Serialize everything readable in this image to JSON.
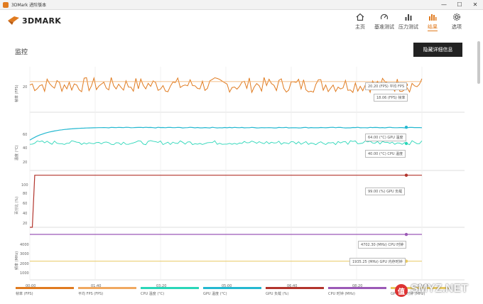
{
  "window": {
    "title": "3DMark 进阶版本",
    "min": "—",
    "max": "☐",
    "close": "✕"
  },
  "app": {
    "logo_text": "3DMARK"
  },
  "nav": [
    {
      "label": "主页",
      "icon": "home-icon"
    },
    {
      "label": "基准测试",
      "icon": "gauge-icon"
    },
    {
      "label": "压力测试",
      "icon": "bar-chart-icon"
    },
    {
      "label": "结果",
      "icon": "results-icon",
      "active": true
    },
    {
      "label": "选项",
      "icon": "gear-icon"
    }
  ],
  "section": {
    "title": "监控",
    "detail_button": "隐藏详细信息"
  },
  "panels": [
    {
      "ylabel": "帧率 (FPS)",
      "ticks": [
        "20"
      ]
    },
    {
      "ylabel": "温度 (°C)",
      "ticks": [
        "60",
        "40",
        "20"
      ]
    },
    {
      "ylabel": "百分比 (%)",
      "ticks": [
        "100",
        "80",
        "60",
        "40",
        "20"
      ]
    },
    {
      "ylabel": "频率 (MHz)",
      "ticks": [
        "4000",
        "3000",
        "2000",
        "1000"
      ]
    }
  ],
  "callouts": {
    "fps": "20.20 (FPS) 平均 FPS",
    "fps2": "18.06 (FPS) 帧率",
    "gpu_temp": "64.00 (°C) GPU 温度",
    "cpu_temp": "40.00 (°C) CPU 温度",
    "gpu_load": "99.00 (%) GPU 负载",
    "cpu_clock": "4702.30 (MHz) CPU 时钟",
    "gpu_mem": "1935.25 (MHz) GPU 内存时钟"
  },
  "x_ticks": [
    "00:00",
    "01:40",
    "03:20",
    "05:00",
    "06:40",
    "08:20",
    "10:00"
  ],
  "legend": [
    {
      "label": "帧率 (FPS)",
      "color": "#e07b20"
    },
    {
      "label": "平均 FPS (FPS)",
      "color": "#f0a860"
    },
    {
      "label": "CPU 温度 (°C)",
      "color": "#2ad6b8"
    },
    {
      "label": "GPU 温度 (°C)",
      "color": "#24b8d0"
    },
    {
      "label": "GPU 负载 (%)",
      "color": "#b2342c"
    },
    {
      "label": "CPU 时钟 (MHz)",
      "color": "#9b59b6"
    },
    {
      "label": "GPU 内存时钟 (MHz)",
      "color": "#e8c860"
    }
  ],
  "chart_data": {
    "type": "line",
    "x_unit": "time (mm:ss)",
    "xlim": [
      "00:00",
      "10:00"
    ],
    "series": [
      {
        "name": "帧率",
        "color": "#e07b20",
        "approx_value": 18.06,
        "noise": 5
      },
      {
        "name": "平均 FPS",
        "color": "#f0a860",
        "approx_value": 20.2,
        "noise": 0
      },
      {
        "name": "GPU 温度",
        "color": "#24b8d0",
        "approx_value": 64,
        "noise": 0
      },
      {
        "name": "CPU 温度",
        "color": "#2ad6b8",
        "approx_value": 40,
        "noise": 4
      },
      {
        "name": "GPU 负载",
        "color": "#b2342c",
        "approx_value": 99,
        "noise": 0
      },
      {
        "name": "CPU 时钟",
        "color": "#9b59b6",
        "approx_value": 4702.3,
        "noise": 0
      },
      {
        "name": "GPU 内存时钟",
        "color": "#e8c860",
        "approx_value": 1935.25,
        "noise": 0
      }
    ]
  },
  "watermark": "SMYZ.NET",
  "watermark_badge": "值"
}
